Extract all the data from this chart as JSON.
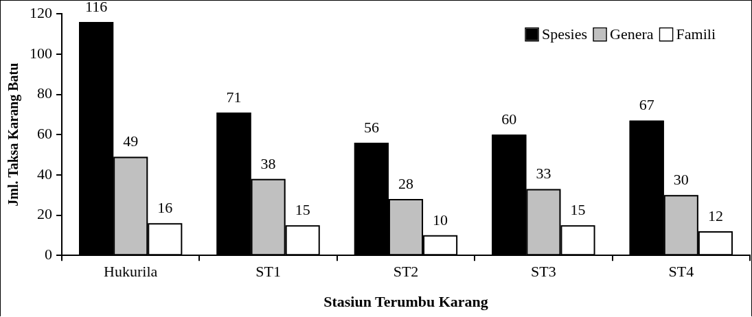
{
  "chart_data": {
    "type": "bar",
    "xlabel": "Stasiun Terumbu Karang",
    "ylabel": "Jml. Taksa Karang Batu",
    "categories": [
      "Hukurila",
      "ST1",
      "ST2",
      "ST3",
      "ST4"
    ],
    "series": [
      {
        "name": "Spesies",
        "color": "#000000",
        "values": [
          116,
          71,
          56,
          60,
          67
        ]
      },
      {
        "name": "Genera",
        "color": "#c0c0c0",
        "values": [
          49,
          38,
          28,
          33,
          30
        ]
      },
      {
        "name": "Famili",
        "color": "#ffffff",
        "values": [
          16,
          15,
          10,
          15,
          12
        ]
      }
    ],
    "ylim": [
      0,
      120
    ],
    "yticks": [
      0,
      20,
      40,
      60,
      80,
      100,
      120
    ],
    "grid": false,
    "legend": "top right",
    "data_labels": true
  }
}
